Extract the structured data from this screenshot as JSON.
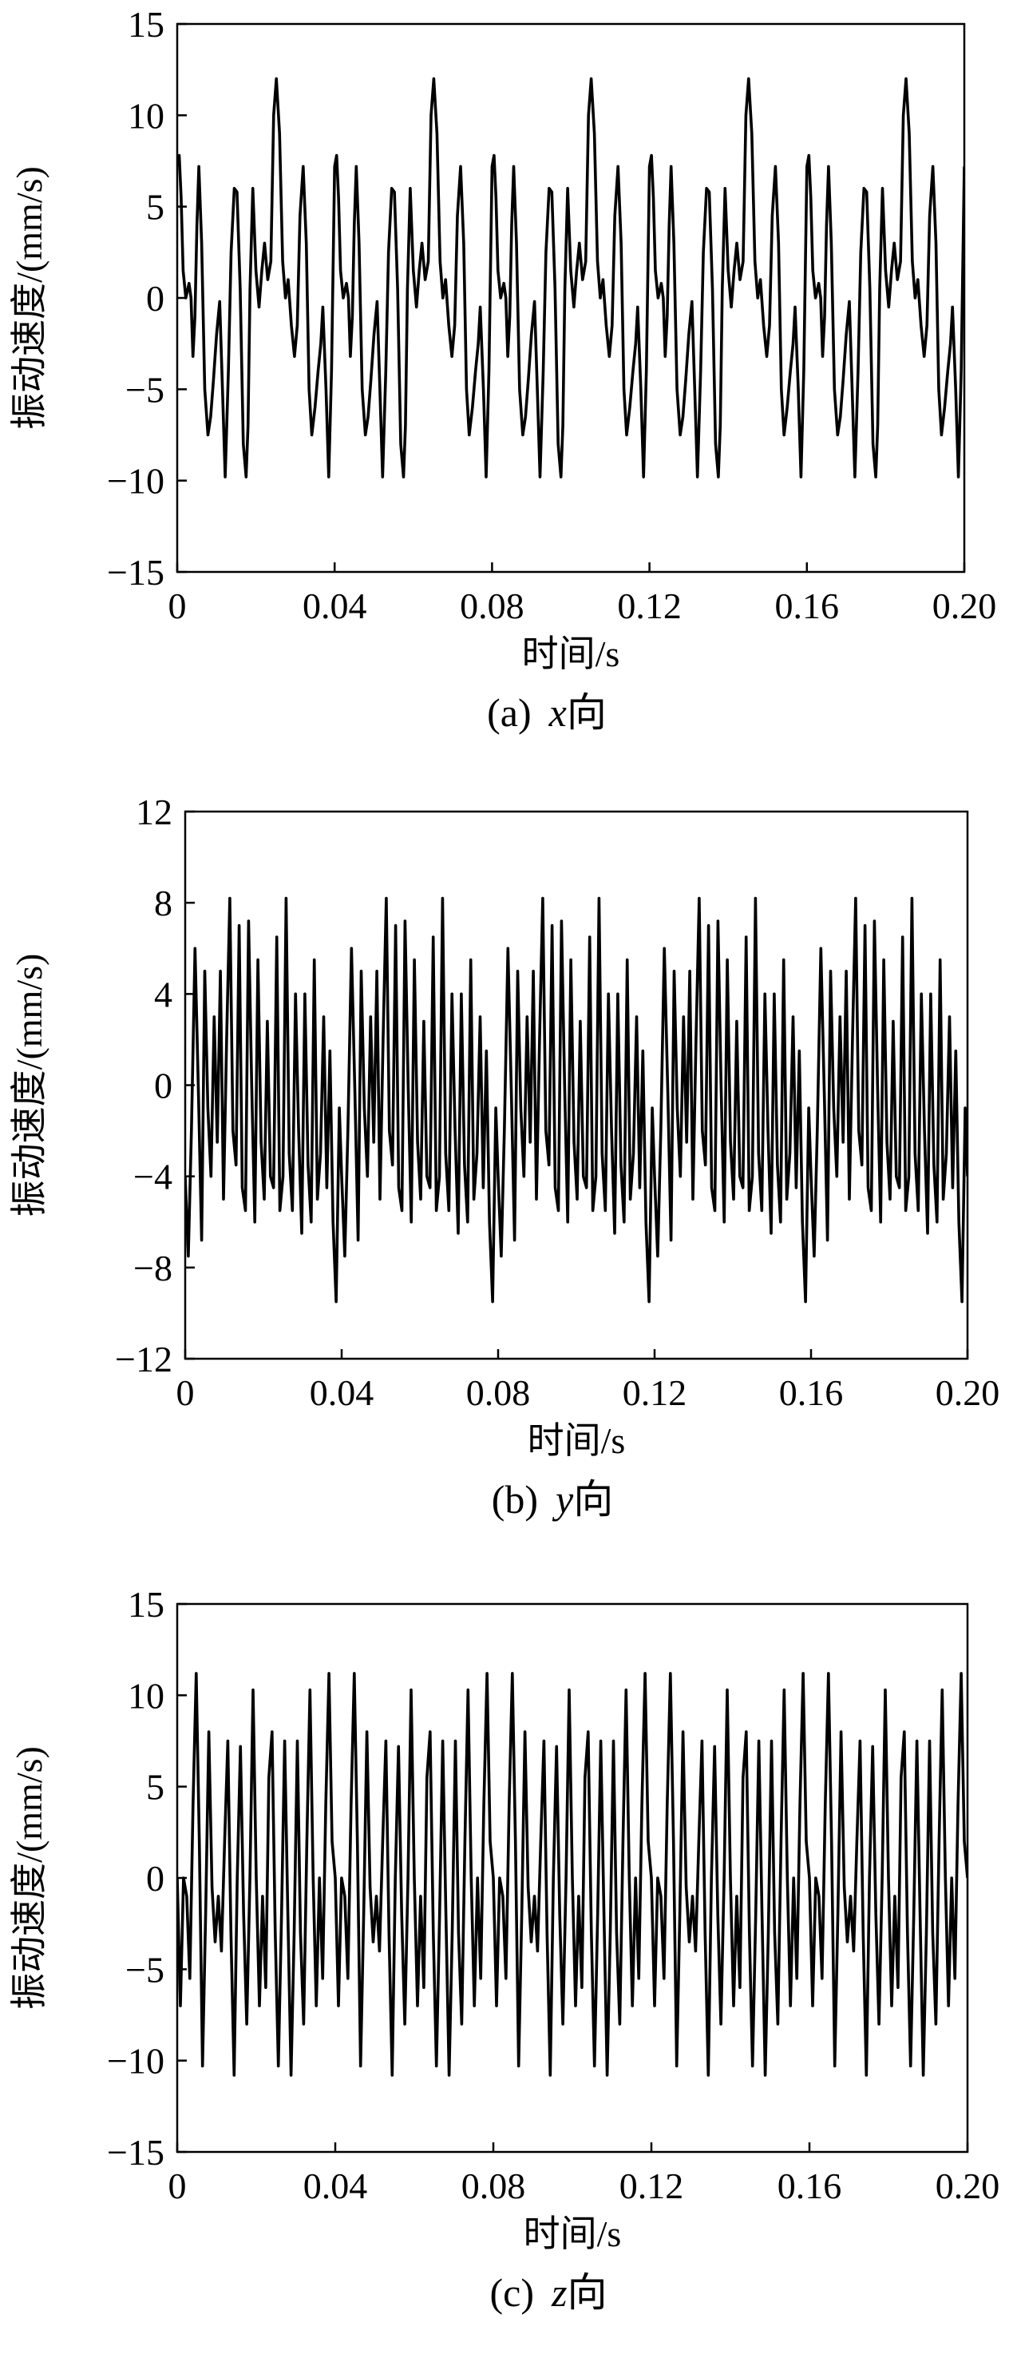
{
  "chart_data": [
    {
      "type": "line",
      "id": "x",
      "caption_prefix": "(a)",
      "caption_var": "x",
      "caption_suffix": "向",
      "xlabel": "时间/s",
      "ylabel": "振动速度/(mm/s)",
      "xlim": [
        0,
        0.2
      ],
      "ylim": [
        -15,
        15
      ],
      "xticks": [
        0,
        0.04,
        0.08,
        0.12,
        0.16,
        0.2
      ],
      "xtick_labels": [
        "0",
        "0.04",
        "0.08",
        "0.12",
        "0.16",
        "0.20"
      ],
      "yticks": [
        15,
        10,
        5,
        0,
        -5,
        -10,
        -15
      ],
      "ytick_labels": [
        "15",
        "10",
        "5",
        "0",
        "−5",
        "−10",
        "−15"
      ],
      "grid": false,
      "period": 0.04,
      "series": [
        {
          "x": [
            0,
            0.0005,
            0.001,
            0.0015,
            0.0022,
            0.003,
            0.0035,
            0.004,
            0.0045,
            0.005,
            0.0055,
            0.0062,
            0.007,
            0.0078,
            0.0085,
            0.0092,
            0.01,
            0.0108,
            0.0115,
            0.0122,
            0.013,
            0.0137,
            0.0145,
            0.0152,
            0.016,
            0.0168,
            0.0175,
            0.018,
            0.0185,
            0.0192,
            0.02,
            0.0208,
            0.0215,
            0.0222,
            0.023,
            0.0238,
            0.0245,
            0.0252,
            0.026,
            0.0268,
            0.0275,
            0.0282,
            0.029,
            0.0298,
            0.0305,
            0.0312,
            0.032,
            0.0328,
            0.0335,
            0.0342,
            0.035,
            0.0358,
            0.0365,
            0.037,
            0.0378,
            0.0385,
            0.0392,
            0.04
          ],
          "y": [
            7.2,
            7.8,
            5.5,
            1.5,
            0.0,
            0.8,
            0.0,
            -3.2,
            -1.0,
            4.0,
            7.2,
            3.0,
            -5.0,
            -7.5,
            -6.5,
            -4.5,
            -2.0,
            -0.2,
            -5.0,
            -9.8,
            -4.0,
            2.5,
            6.0,
            5.8,
            0.5,
            -8.0,
            -9.8,
            -7.0,
            0.5,
            6.0,
            1.5,
            -0.5,
            1.5,
            3.0,
            1.0,
            2.0,
            10.0,
            12.0,
            9.0,
            2.0,
            0.0,
            1.0,
            -1.5,
            -3.2,
            -1.5,
            4.5,
            7.2,
            3.0,
            -5.0,
            -7.5,
            -6.0,
            -4.0,
            -2.5,
            -0.5,
            -5.0,
            -9.8,
            -4.0,
            7.2
          ]
        }
      ]
    },
    {
      "type": "line",
      "id": "y",
      "caption_prefix": "(b)",
      "caption_var": "y",
      "caption_suffix": "向",
      "xlabel": "时间/s",
      "ylabel": "振动速度/(mm/s)",
      "xlim": [
        0,
        0.2
      ],
      "ylim": [
        -12,
        12
      ],
      "xticks": [
        0,
        0.04,
        0.08,
        0.12,
        0.16,
        0.2
      ],
      "xtick_labels": [
        "0",
        "0.04",
        "0.08",
        "0.12",
        "0.16",
        "0.20"
      ],
      "yticks": [
        12,
        8,
        4,
        0,
        -4,
        -8,
        -12
      ],
      "ytick_labels": [
        "12",
        "8",
        "4",
        "0",
        "−4",
        "−8",
        "−12"
      ],
      "grid": false,
      "period": 0.04,
      "series": [
        {
          "x": [
            0,
            0.0008,
            0.0016,
            0.0025,
            0.0034,
            0.0042,
            0.005,
            0.0058,
            0.0066,
            0.0074,
            0.0082,
            0.009,
            0.0098,
            0.0106,
            0.0114,
            0.0122,
            0.013,
            0.0138,
            0.0146,
            0.0154,
            0.0162,
            0.017,
            0.0178,
            0.0186,
            0.0194,
            0.0202,
            0.021,
            0.0218,
            0.0226,
            0.0234,
            0.0242,
            0.025,
            0.0258,
            0.0266,
            0.0274,
            0.0282,
            0.029,
            0.0298,
            0.0306,
            0.0314,
            0.0322,
            0.033,
            0.0338,
            0.0346,
            0.0354,
            0.0362,
            0.037,
            0.0378,
            0.0386,
            0.0394,
            0.04
          ],
          "y": [
            -4.0,
            -7.5,
            -2.0,
            6.0,
            -0.5,
            -6.8,
            5.0,
            -1.0,
            -4.0,
            3.0,
            -2.5,
            5.0,
            -5.0,
            2.0,
            8.2,
            -2.0,
            -3.5,
            7.0,
            -4.5,
            -5.5,
            7.2,
            0.0,
            -6.0,
            5.5,
            -2.5,
            -5.0,
            2.8,
            -4.0,
            -4.5,
            6.5,
            -5.5,
            -4.0,
            8.2,
            -3.0,
            -5.5,
            4.0,
            -2.0,
            -6.5,
            4.0,
            -3.5,
            -6.0,
            5.5,
            -5.0,
            -3.0,
            3.0,
            -4.5,
            1.5,
            -6.0,
            -9.5,
            -1.0,
            -4.0
          ]
        }
      ]
    },
    {
      "type": "line",
      "id": "z",
      "caption_prefix": "(c)",
      "caption_var": "z",
      "caption_suffix": "向",
      "xlabel": "时间/s",
      "ylabel": "振动速度/(mm/s)",
      "xlim": [
        0,
        0.2
      ],
      "ylim": [
        -15,
        15
      ],
      "xticks": [
        0,
        0.04,
        0.08,
        0.12,
        0.16,
        0.2
      ],
      "xtick_labels": [
        "0",
        "0.04",
        "0.08",
        "0.12",
        "0.16",
        "0.20"
      ],
      "yticks": [
        15,
        10,
        5,
        0,
        -5,
        -10,
        -15
      ],
      "ytick_labels": [
        "15",
        "10",
        "5",
        "0",
        "−5",
        "−10",
        "−15"
      ],
      "grid": false,
      "period": 0.04,
      "series": [
        {
          "x": [
            0,
            0.0008,
            0.0016,
            0.0024,
            0.0032,
            0.004,
            0.0048,
            0.0056,
            0.0064,
            0.0072,
            0.008,
            0.0088,
            0.0096,
            0.0104,
            0.0112,
            0.012,
            0.0128,
            0.0136,
            0.0144,
            0.0152,
            0.016,
            0.0168,
            0.0176,
            0.0184,
            0.0192,
            0.02,
            0.0208,
            0.0216,
            0.0224,
            0.0232,
            0.024,
            0.0248,
            0.0256,
            0.0264,
            0.0272,
            0.028,
            0.0288,
            0.0296,
            0.0304,
            0.0312,
            0.032,
            0.0328,
            0.0336,
            0.0344,
            0.0352,
            0.036,
            0.0368,
            0.0376,
            0.0384,
            0.0392,
            0.04
          ],
          "y": [
            0.0,
            -7.0,
            0.0,
            -1.0,
            -5.5,
            4.0,
            11.2,
            2.0,
            -10.3,
            -2.0,
            8.0,
            -0.5,
            -3.5,
            -1.0,
            -4.0,
            2.0,
            7.5,
            -3.0,
            -10.8,
            0.0,
            7.2,
            -2.0,
            -8.0,
            0.0,
            10.3,
            0.0,
            -7.0,
            -1.0,
            -6.0,
            5.5,
            8.0,
            -3.0,
            -10.3,
            -2.0,
            7.5,
            -2.0,
            -10.8,
            -3.0,
            7.5,
            -3.0,
            -8.0,
            2.0,
            10.3,
            0.0,
            -7.0,
            0.0,
            -5.5,
            4.0,
            11.2,
            2.0,
            0.0
          ]
        }
      ]
    }
  ]
}
